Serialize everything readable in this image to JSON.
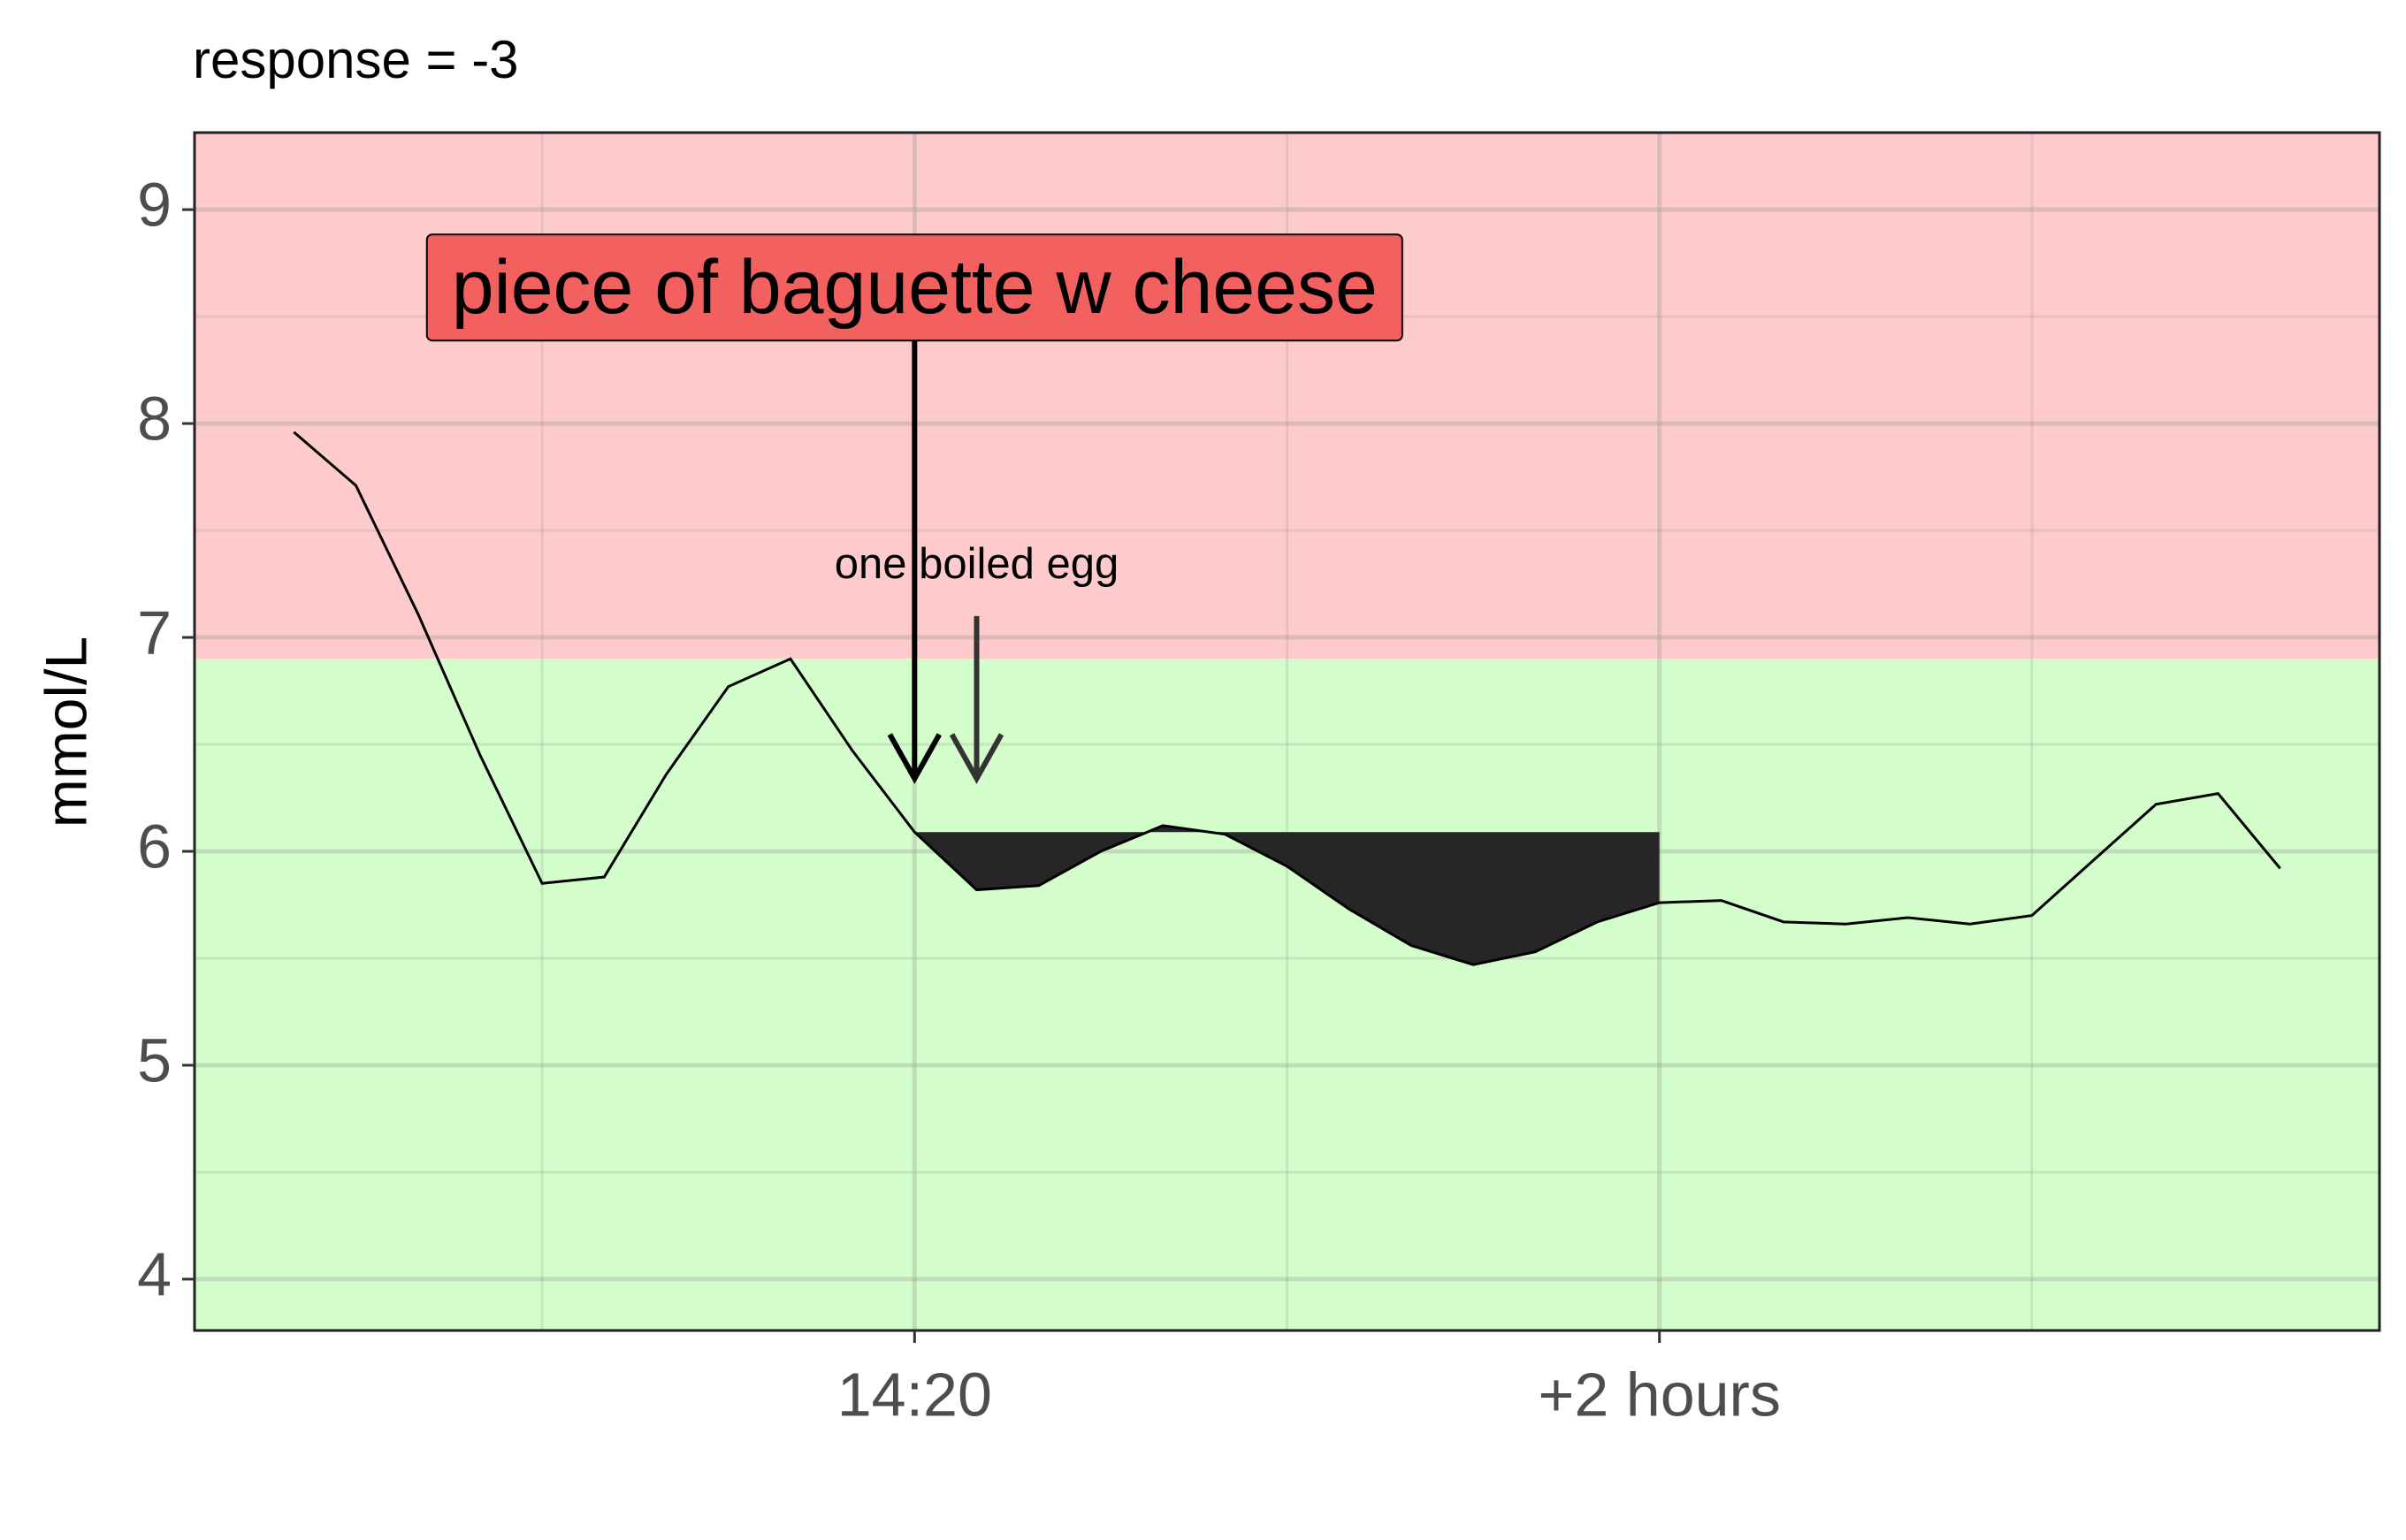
{
  "chart_data": {
    "type": "line",
    "title": "response = -3",
    "y_label": "mmol/L",
    "x": [
      -100,
      -90,
      -80,
      -70,
      -60,
      -50,
      -40,
      -30,
      -20,
      -10,
      0,
      10,
      20,
      30,
      40,
      50,
      60,
      70,
      80,
      90,
      100,
      110,
      120,
      130,
      140,
      150,
      160,
      170,
      180,
      190,
      200,
      210,
      220
    ],
    "values": [
      7.96,
      7.71,
      7.11,
      6.45,
      5.85,
      5.88,
      6.36,
      6.77,
      6.9,
      6.47,
      6.09,
      5.82,
      5.84,
      6.0,
      6.12,
      6.08,
      5.93,
      5.73,
      5.56,
      5.47,
      5.53,
      5.67,
      5.76,
      5.77,
      5.67,
      5.66,
      5.69,
      5.66,
      5.7,
      5.96,
      6.22,
      6.27,
      5.92
    ],
    "color": "#000000",
    "xlim": [
      -116,
      236
    ],
    "xticks": [
      {
        "value": 0,
        "label": "14:20"
      },
      {
        "value": 120,
        "label": "+2 hours"
      }
    ],
    "x_minor_grid": [
      -60,
      60,
      180
    ],
    "ylim": [
      3.76,
      9.36
    ],
    "yticks": [
      4,
      5,
      6,
      7,
      8,
      9
    ],
    "y_minor_grid": [
      4.5,
      5.5,
      6.5,
      7.5,
      8.5
    ],
    "grid": true,
    "threshold": 6.9,
    "high_color": "#fdcbcb",
    "low_color": "#d3fdca",
    "baseline": 6.09,
    "shade_range": [
      0,
      120
    ],
    "shade_color": "#262626",
    "annotations": [
      {
        "text": "piece of baguette w cheese",
        "x": 0,
        "y": 8.61,
        "tip": 6.34,
        "box_color": "#f26060",
        "arrow_color": "#000000"
      },
      {
        "text": "one boiled egg",
        "x": 10,
        "y": 7.33,
        "arrow_from": 7.1,
        "tip": 6.34,
        "arrow_color": "#333333"
      }
    ]
  }
}
